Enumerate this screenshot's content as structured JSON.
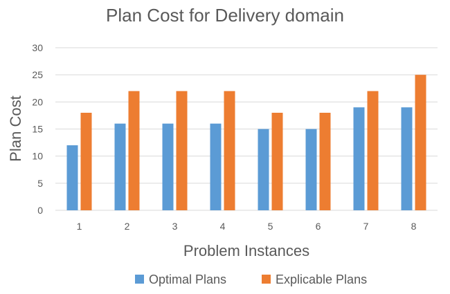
{
  "chart_data": {
    "type": "bar",
    "title": "Plan Cost for Delivery domain",
    "xlabel": "Problem Instances",
    "ylabel": "Plan Cost",
    "categories": [
      "1",
      "2",
      "3",
      "4",
      "5",
      "6",
      "7",
      "8"
    ],
    "ylim": [
      0,
      30
    ],
    "yticks": [
      "0",
      "5",
      "10",
      "15",
      "20",
      "25",
      "30"
    ],
    "grid": true,
    "legend_position": "bottom",
    "series": [
      {
        "name": "Optimal Plans",
        "color": "#5B9BD5",
        "values": [
          12,
          16,
          16,
          16,
          15,
          15,
          19,
          19
        ]
      },
      {
        "name": "Explicable Plans",
        "color": "#ED7D31",
        "values": [
          18,
          22,
          22,
          22,
          18,
          18,
          22,
          25
        ]
      }
    ]
  }
}
